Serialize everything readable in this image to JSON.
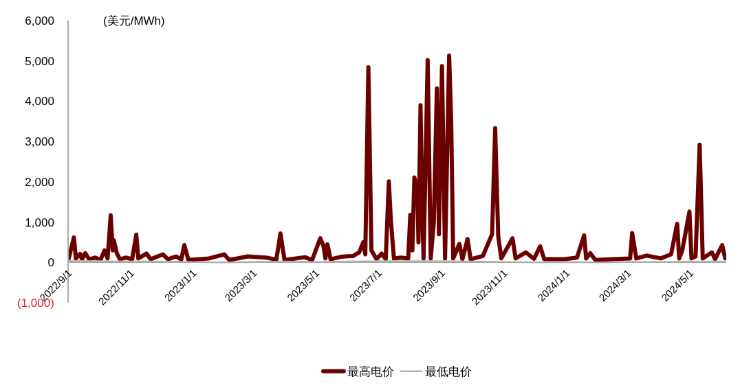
{
  "chart_data": {
    "type": "line",
    "ylabel": "(美元/MWh)",
    "ylim": [
      -1000,
      6000
    ],
    "yticks": [
      {
        "value": -1000,
        "label": "(1,000)"
      },
      {
        "value": 0,
        "label": "0"
      },
      {
        "value": 1000,
        "label": "1,000"
      },
      {
        "value": 2000,
        "label": "2,000"
      },
      {
        "value": 3000,
        "label": "3,000"
      },
      {
        "value": 4000,
        "label": "4,000"
      },
      {
        "value": 5000,
        "label": "5,000"
      },
      {
        "value": 6000,
        "label": "6,000"
      }
    ],
    "xlim": [
      "2022-09-01",
      "2024-06-05"
    ],
    "xticks": [
      {
        "value": "2022-09-01",
        "label": "2022/9/1"
      },
      {
        "value": "2022-11-01",
        "label": "2022/11/1"
      },
      {
        "value": "2023-01-01",
        "label": "2023/1/1"
      },
      {
        "value": "2023-03-01",
        "label": "2023/3/1"
      },
      {
        "value": "2023-05-01",
        "label": "2023/5/1"
      },
      {
        "value": "2023-07-01",
        "label": "2023/7/1"
      },
      {
        "value": "2023-09-01",
        "label": "2023/9/1"
      },
      {
        "value": "2023-11-01",
        "label": "2023/11/1"
      },
      {
        "value": "2024-01-01",
        "label": "2024/1/1"
      },
      {
        "value": "2024-03-01",
        "label": "2024/3/1"
      },
      {
        "value": "2024-05-01",
        "label": "2024/5/1"
      }
    ],
    "legend": "bottom",
    "marker": "none",
    "series": [
      {
        "name": "最高电价",
        "color": "#6b0000",
        "x": [
          "2022-09-01",
          "2022-09-06",
          "2022-09-08",
          "2022-09-12",
          "2022-09-14",
          "2022-09-17",
          "2022-09-21",
          "2022-09-27",
          "2022-10-02",
          "2022-10-06",
          "2022-10-09",
          "2022-10-12",
          "2022-10-14",
          "2022-10-15",
          "2022-10-18",
          "2022-10-21",
          "2022-10-27",
          "2022-11-02",
          "2022-11-06",
          "2022-11-08",
          "2022-11-16",
          "2022-11-20",
          "2022-12-02",
          "2022-12-07",
          "2022-12-15",
          "2022-12-20",
          "2022-12-23",
          "2022-12-27",
          "2023-01-16",
          "2023-01-31",
          "2023-02-05",
          "2023-02-23",
          "2023-03-13",
          "2023-03-23",
          "2023-03-27",
          "2023-03-31",
          "2023-04-20",
          "2023-04-27",
          "2023-05-02",
          "2023-05-05",
          "2023-05-08",
          "2023-05-10",
          "2023-05-12",
          "2023-05-15",
          "2023-05-25",
          "2023-06-06",
          "2023-06-12",
          "2023-06-16",
          "2023-06-18",
          "2023-06-21",
          "2023-06-24",
          "2023-06-29",
          "2023-07-04",
          "2023-07-08",
          "2023-07-11",
          "2023-07-13",
          "2023-07-16",
          "2023-07-23",
          "2023-07-30",
          "2023-08-01",
          "2023-08-03",
          "2023-08-05",
          "2023-08-08",
          "2023-08-09",
          "2023-08-11",
          "2023-08-13",
          "2023-08-14",
          "2023-08-18",
          "2023-08-21",
          "2023-08-24",
          "2023-08-27",
          "2023-08-29",
          "2023-09-01",
          "2023-09-04",
          "2023-09-08",
          "2023-09-10",
          "2023-09-12",
          "2023-09-18",
          "2023-09-21",
          "2023-09-26",
          "2023-09-29",
          "2023-10-11",
          "2023-10-20",
          "2023-10-23",
          "2023-10-26",
          "2023-10-29",
          "2023-11-09",
          "2023-11-12",
          "2023-11-22",
          "2023-11-30",
          "2023-12-06",
          "2023-12-10",
          "2023-12-30",
          "2024-01-11",
          "2024-01-18",
          "2024-01-20",
          "2024-01-24",
          "2024-01-29",
          "2024-02-15",
          "2024-03-03",
          "2024-03-05",
          "2024-03-09",
          "2024-03-19",
          "2024-04-02",
          "2024-04-12",
          "2024-04-18",
          "2024-04-20",
          "2024-04-23",
          "2024-04-30",
          "2024-05-02",
          "2024-05-06",
          "2024-05-10",
          "2024-05-13",
          "2024-05-22",
          "2024-05-25",
          "2024-06-01",
          "2024-06-04"
        ],
        "values": [
          100,
          620,
          100,
          210,
          80,
          230,
          80,
          120,
          60,
          300,
          100,
          1170,
          300,
          550,
          230,
          80,
          120,
          80,
          690,
          100,
          220,
          80,
          200,
          80,
          150,
          70,
          430,
          60,
          100,
          200,
          60,
          150,
          120,
          70,
          720,
          60,
          130,
          60,
          400,
          600,
          420,
          100,
          450,
          80,
          140,
          160,
          250,
          500,
          200,
          4840,
          300,
          80,
          220,
          80,
          2010,
          1050,
          100,
          120,
          100,
          1180,
          300,
          2110,
          1800,
          500,
          3900,
          1000,
          100,
          5020,
          100,
          1000,
          4320,
          700,
          4870,
          100,
          5130,
          3500,
          100,
          460,
          80,
          580,
          80,
          160,
          700,
          3330,
          650,
          100,
          600,
          100,
          250,
          90,
          400,
          80,
          80,
          120,
          670,
          100,
          230,
          60,
          80,
          100,
          730,
          100,
          170,
          100,
          200,
          960,
          100,
          300,
          1260,
          100,
          150,
          2920,
          100,
          250,
          80,
          430,
          100
        ]
      },
      {
        "name": "最低电价",
        "color": "#b8b4a8",
        "x": [
          "2022-09-01",
          "2022-10-01",
          "2022-11-01",
          "2022-12-01",
          "2023-01-01",
          "2023-02-01",
          "2023-03-01",
          "2023-04-01",
          "2023-05-01",
          "2023-06-01",
          "2023-07-01",
          "2023-08-01",
          "2023-09-01",
          "2023-10-01",
          "2023-11-01",
          "2023-12-01",
          "2024-01-01",
          "2024-02-01",
          "2024-03-01",
          "2024-04-01",
          "2024-05-01",
          "2024-06-04"
        ],
        "values": [
          40,
          30,
          20,
          20,
          10,
          0,
          10,
          20,
          10,
          20,
          30,
          30,
          30,
          20,
          10,
          0,
          10,
          0,
          10,
          10,
          20,
          20
        ]
      }
    ]
  }
}
